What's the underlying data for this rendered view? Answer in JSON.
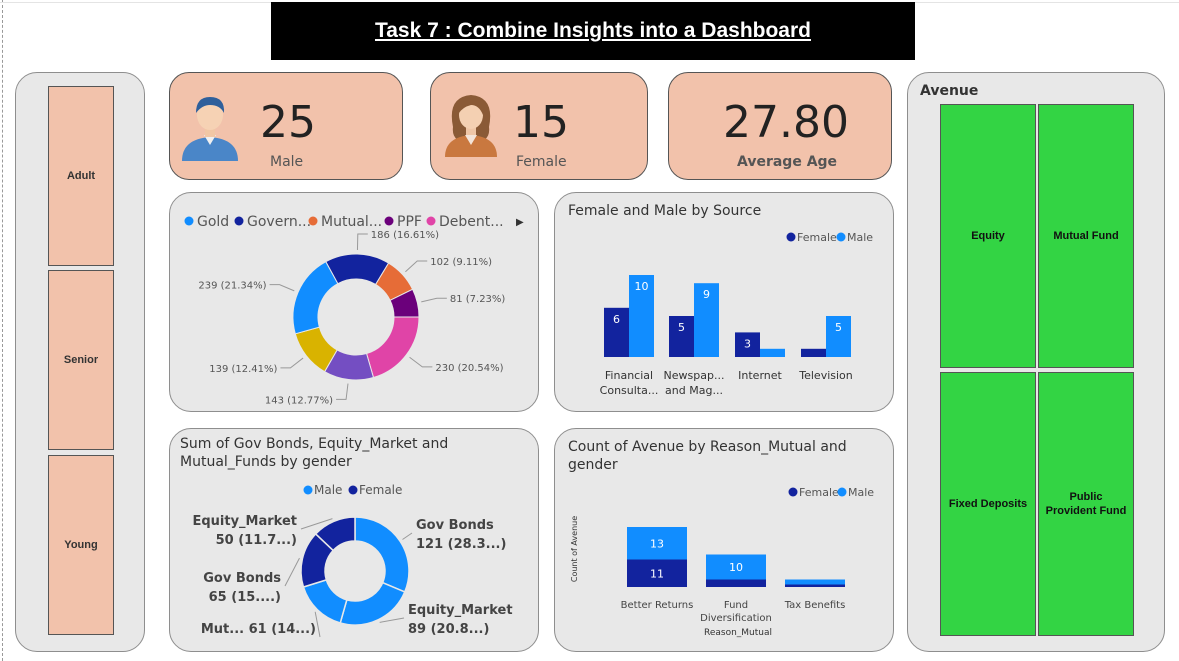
{
  "title": "Task 7 : Combine Insights into a Dashboard",
  "slicer": {
    "items": [
      "Adult",
      "Senior",
      "Young"
    ]
  },
  "kpis": {
    "male": {
      "value": "25",
      "label": "Male",
      "icon": "male-avatar-icon"
    },
    "female": {
      "value": "15",
      "label": "Female",
      "icon": "female-avatar-icon"
    },
    "avg_age": {
      "value": "27.80",
      "label": "Average Age"
    }
  },
  "colors": {
    "male": "#118dff",
    "female": "#12239e",
    "kpi": "#f2c2ab",
    "tile": "#33d444",
    "gold": "#118dff",
    "govern": "#12239e",
    "mutual": "#e66c37",
    "ppf": "#6b007b",
    "debent": "#e044a7",
    "purple": "#744ec2",
    "yellow": "#d9b300"
  },
  "treemap": {
    "title": "Avenue",
    "tiles": [
      "Equity",
      "Mutual Fund",
      "Fixed Deposits",
      "Public Provident Fund"
    ]
  },
  "chart_data": [
    {
      "type": "pie",
      "legend": [
        "Gold",
        "Govern...",
        "Mutual...",
        "PPF",
        "Debent..."
      ],
      "legend_more": "▶",
      "slices": [
        {
          "value": 186,
          "label": "186 (16.61%)",
          "color": "#12239e"
        },
        {
          "value": 102,
          "label": "102 (9.11%)",
          "color": "#e66c37"
        },
        {
          "value": 81,
          "label": "81 (7.23%)",
          "color": "#6b007b"
        },
        {
          "value": 230,
          "label": "230 (20.54%)",
          "color": "#e044a7"
        },
        {
          "value": 143,
          "label": "143 (12.77%)",
          "color": "#744ec2"
        },
        {
          "value": 139,
          "label": "139 (12.41%)",
          "color": "#d9b300"
        },
        {
          "value": 239,
          "label": "239 (21.34%)",
          "color": "#118dff"
        }
      ]
    },
    {
      "type": "bar",
      "title": "Female and Male by Source",
      "legend": [
        "Female",
        "Male"
      ],
      "categories": [
        [
          "Financial",
          "Consulta..."
        ],
        [
          "Newspap...",
          "and Mag..."
        ],
        [
          "Internet"
        ],
        [
          "Television"
        ]
      ],
      "series": [
        {
          "name": "Female",
          "values": [
            6,
            5,
            3,
            1
          ],
          "labels": [
            "6",
            "5",
            "3",
            ""
          ]
        },
        {
          "name": "Male",
          "values": [
            10,
            9,
            1,
            5
          ],
          "labels": [
            "10",
            "9",
            "",
            "5"
          ]
        }
      ],
      "ymax": 10
    },
    {
      "type": "pie",
      "title": "Sum of Gov Bonds, Equity_Market and Mutual_Funds by gender",
      "legend": [
        "Male",
        "Female"
      ],
      "slices": [
        {
          "value": 121,
          "color": "#118dff",
          "label": [
            "Gov Bonds",
            "121 (28.3...)"
          ]
        },
        {
          "value": 89,
          "color": "#118dff",
          "label": [
            "Equity_Market",
            "89 (20.8...)"
          ]
        },
        {
          "value": 61,
          "color": "#118dff",
          "label": [
            "Mut... 61 (14...)"
          ]
        },
        {
          "value": 65,
          "color": "#12239e",
          "label": [
            "Gov Bonds",
            "65 (15....)"
          ]
        },
        {
          "value": 50,
          "color": "#12239e",
          "label": [
            "Equity_Market",
            "50 (11.7...)"
          ]
        }
      ]
    },
    {
      "type": "bar",
      "stacked": true,
      "title": "Count of Avenue by Reason_Mutual and gender",
      "legend": [
        "Female",
        "Male"
      ],
      "ylabel": "Count of Avenue",
      "xlabel": "Reason_Mutual",
      "categories": [
        [
          "Better Returns"
        ],
        [
          "Fund",
          "Diversification"
        ],
        [
          "Tax Benefits"
        ]
      ],
      "series": [
        {
          "name": "Female",
          "values": [
            11,
            3,
            1
          ],
          "labels": [
            "11",
            "",
            ""
          ]
        },
        {
          "name": "Male",
          "values": [
            13,
            10,
            2
          ],
          "labels": [
            "13",
            "10",
            ""
          ]
        }
      ]
    }
  ]
}
